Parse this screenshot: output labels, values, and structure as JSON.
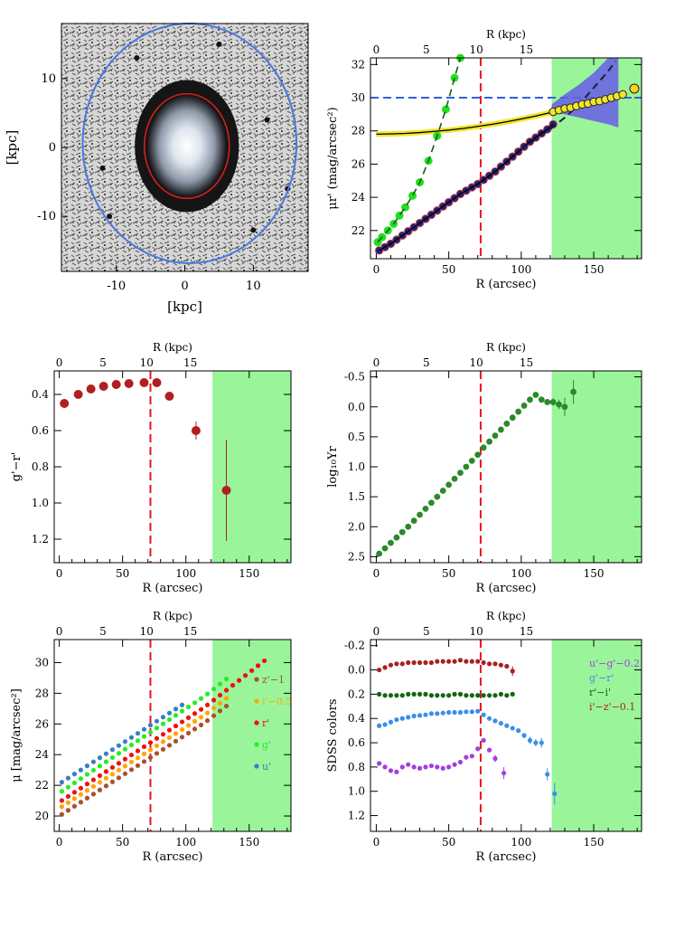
{
  "colors": {
    "green_region": "#9af59a",
    "vline": "#e8141e",
    "hline": "#2f5fe8",
    "ellipse_inner": "#d42020",
    "ellipse_outer": "#4a78e0",
    "shade": "#6a5ce8",
    "total": "#1a237e",
    "bulge": "#21e021",
    "disk": "#f0e62a",
    "endpoint": "#ffd21e",
    "gr_pts": "#b02020",
    "pr_pts": "#2a8a2a",
    "z": "#a8522e",
    "i": "#ffa500",
    "r": "#ee1111",
    "g": "#22ee22",
    "u": "#3a7ec2",
    "ug": "#a040e0",
    "grc": "#3a8fe8",
    "ri": "#116611",
    "iz": "#a82020"
  },
  "chart_data": [
    {
      "id": "image",
      "type": "image",
      "xlabel": "[kpc]",
      "ylabel": "[kpc]",
      "xticks": [
        -10,
        0,
        10
      ],
      "yticks": [
        10,
        0,
        -10
      ],
      "xlim": [
        -18,
        18
      ],
      "ylim": [
        -18,
        18
      ],
      "inner_ellipse": {
        "cx": 0.3,
        "cy": 0.2,
        "rx": 6.2,
        "ry": 7.6
      },
      "outer_ellipse": {
        "cx": 0.7,
        "cy": 0.6,
        "rx": 15.6,
        "ry": 17.4
      }
    },
    {
      "id": "sb",
      "type": "line",
      "title": "R (kpc)",
      "top_ticks": [
        "0",
        "5",
        "10",
        "15"
      ],
      "top_tick_pos": [
        0,
        5,
        10,
        15
      ],
      "xlabel": "R (arcsec)",
      "ylabel": "μr' (mag/arcsec²)",
      "xticks": [
        0,
        50,
        100,
        150
      ],
      "yticks": [
        22,
        24,
        26,
        28,
        30,
        32
      ],
      "xlim": [
        -4,
        183
      ],
      "ylim": [
        32.4,
        20.3
      ],
      "yflip": true,
      "vline": 72,
      "hline": 30,
      "green_from": 121,
      "series": [
        {
          "name": "total",
          "x": [
            2,
            6,
            10,
            14,
            18,
            22,
            26,
            30,
            34,
            38,
            42,
            46,
            50,
            54,
            58,
            62,
            66,
            70,
            74,
            78,
            82,
            86,
            90,
            94,
            98,
            102,
            106,
            110,
            114,
            118,
            122
          ],
          "y": [
            20.8,
            21.0,
            21.2,
            21.45,
            21.7,
            21.95,
            22.2,
            22.45,
            22.7,
            22.95,
            23.2,
            23.45,
            23.7,
            23.95,
            24.2,
            24.4,
            24.6,
            24.8,
            25.05,
            25.3,
            25.55,
            25.85,
            26.15,
            26.45,
            26.75,
            27.05,
            27.35,
            27.6,
            27.85,
            28.1,
            28.4
          ]
        },
        {
          "name": "bulge",
          "x": [
            1,
            4,
            8,
            12,
            16,
            20,
            25,
            30,
            36,
            42,
            48,
            54,
            58
          ],
          "y": [
            21.3,
            21.6,
            22.0,
            22.4,
            22.9,
            23.4,
            24.1,
            24.9,
            26.2,
            27.7,
            29.3,
            31.2,
            32.4
          ]
        },
        {
          "name": "disk",
          "x": [
            0,
            10,
            20,
            30,
            40,
            50,
            60,
            70,
            80,
            90,
            100,
            110,
            120,
            130,
            140,
            150,
            160,
            170
          ],
          "y": [
            27.8,
            27.82,
            27.85,
            27.9,
            27.97,
            28.05,
            28.15,
            28.27,
            28.4,
            28.55,
            28.72,
            28.9,
            29.1,
            29.3,
            29.5,
            29.72,
            29.95,
            30.2
          ]
        },
        {
          "name": "disk_pts",
          "x": [
            122,
            126,
            130,
            134,
            138,
            142,
            146,
            150,
            154,
            158,
            162,
            166,
            170
          ],
          "y": [
            29.15,
            29.25,
            29.35,
            29.4,
            29.5,
            29.6,
            29.65,
            29.75,
            29.8,
            29.9,
            30.0,
            30.1,
            30.2
          ]
        },
        {
          "name": "endpoint",
          "x": [
            178
          ],
          "y": [
            30.55
          ]
        }
      ]
    },
    {
      "id": "gr",
      "type": "scatter",
      "title": "R (kpc)",
      "top_ticks": [
        "0",
        "5",
        "10",
        "15"
      ],
      "top_tick_pos": [
        0,
        5,
        10,
        15
      ],
      "xlabel": "R (arcsec)",
      "ylabel": "g'−r'",
      "xticks": [
        0,
        50,
        100,
        150
      ],
      "yticks": [
        0.4,
        0.6,
        0.8,
        1.0,
        1.2
      ],
      "ytick_labels": [
        "0.4",
        "0.6",
        "0.8",
        "1.0",
        "1.2"
      ],
      "xlim": [
        -4,
        183
      ],
      "ylim": [
        0.27,
        1.33
      ],
      "vline": 72,
      "green_from": 121,
      "series": [
        {
          "name": "g-r",
          "x": [
            4,
            15,
            25,
            35,
            45,
            55,
            67,
            77,
            87,
            108,
            132
          ],
          "y": [
            0.45,
            0.4,
            0.37,
            0.355,
            0.345,
            0.34,
            0.335,
            0.335,
            0.41,
            0.6,
            0.93
          ],
          "err": [
            0,
            0,
            0,
            0,
            0,
            0,
            0,
            0,
            0,
            0.05,
            0.28
          ]
        }
      ]
    },
    {
      "id": "ur",
      "type": "scatter",
      "title": "R (kpc)",
      "top_ticks": [
        "0",
        "5",
        "10",
        "15"
      ],
      "top_tick_pos": [
        0,
        5,
        10,
        15
      ],
      "xlabel": "R (arcsec)",
      "ylabel": "log₁₀Υr",
      "xticks": [
        0,
        50,
        100,
        150
      ],
      "yticks": [
        -0.5,
        0.0,
        0.5,
        1.0,
        1.5,
        2.0,
        2.5
      ],
      "ytick_labels": [
        "-0.5",
        "0.0",
        "0.5",
        "1.0",
        "1.5",
        "2.0",
        "2.5"
      ],
      "xlim": [
        -4,
        183
      ],
      "ylim": [
        -0.6,
        2.6
      ],
      "vline": 72,
      "green_from": 121,
      "series": [
        {
          "name": "logY",
          "x": [
            2,
            6,
            10,
            14,
            18,
            22,
            26,
            30,
            34,
            38,
            42,
            46,
            50,
            54,
            58,
            62,
            66,
            70,
            74,
            78,
            82,
            86,
            90,
            94,
            98,
            102,
            106,
            110,
            114,
            118,
            122,
            126,
            130,
            136
          ],
          "y": [
            2.45,
            2.36,
            2.27,
            2.18,
            2.09,
            2.0,
            1.9,
            1.8,
            1.7,
            1.6,
            1.5,
            1.4,
            1.3,
            1.2,
            1.1,
            1.0,
            0.9,
            0.8,
            0.68,
            0.58,
            0.48,
            0.38,
            0.28,
            0.18,
            0.08,
            -0.02,
            -0.12,
            -0.2,
            -0.12,
            -0.08,
            -0.08,
            -0.04,
            0.0,
            -0.25
          ],
          "err": [
            0,
            0,
            0,
            0,
            0,
            0,
            0,
            0,
            0,
            0,
            0,
            0,
            0,
            0,
            0,
            0,
            0,
            0,
            0,
            0,
            0,
            0,
            0,
            0,
            0,
            0,
            0,
            0,
            0,
            0.05,
            0.06,
            0.08,
            0.15,
            0.2
          ]
        }
      ]
    },
    {
      "id": "mu",
      "type": "scatter",
      "title": "R (kpc)",
      "top_ticks": [
        "0",
        "5",
        "10",
        "15"
      ],
      "top_tick_pos": [
        0,
        5,
        10,
        15
      ],
      "xlabel": "R (arcsec)",
      "ylabel": "μ [mag/arcsec²]",
      "xticks": [
        0,
        50,
        100,
        150
      ],
      "yticks": [
        20,
        22,
        24,
        26,
        28,
        30
      ],
      "xlim": [
        -4,
        183
      ],
      "ylim": [
        31.5,
        19.0
      ],
      "yflip": true,
      "vline": 72,
      "green_from": 121,
      "legend": [
        "z'−1",
        "i'−0.5",
        "r'",
        "g'",
        "u'"
      ],
      "series": [
        {
          "name": "z'−1",
          "start": 20.0,
          "slope": 0.053,
          "xmax": 135
        },
        {
          "name": "i'−0.5",
          "start": 20.5,
          "slope": 0.053,
          "xmax": 135
        },
        {
          "name": "r'",
          "start": 20.9,
          "slope": 0.054,
          "xmax": 165
        },
        {
          "name": "g'",
          "start": 21.5,
          "slope": 0.055,
          "xmax": 132
        },
        {
          "name": "u'",
          "start": 22.1,
          "slope": 0.053,
          "xmax": 100
        }
      ]
    },
    {
      "id": "colors",
      "type": "scatter",
      "title": "R (kpc)",
      "top_ticks": [
        "0",
        "5",
        "10",
        "15"
      ],
      "top_tick_pos": [
        0,
        5,
        10,
        15
      ],
      "xlabel": "R (arcsec)",
      "ylabel": "SDSS colors",
      "xticks": [
        0,
        50,
        100,
        150
      ],
      "yticks": [
        -0.2,
        0.0,
        0.2,
        0.4,
        0.6,
        0.8,
        1.0,
        1.2
      ],
      "ytick_labels": [
        "-0.2",
        "0.0",
        "0.2",
        "0.4",
        "0.6",
        "0.8",
        "1.0",
        "1.2"
      ],
      "xlim": [
        -4,
        183
      ],
      "ylim": [
        -0.25,
        1.33
      ],
      "vline": 72,
      "green_from": 121,
      "legend": [
        "u'−g'−0.2",
        "g'−r'",
        "r'−i'",
        "i'−z'−0.1"
      ],
      "series": [
        {
          "name": "u'−g'−0.2",
          "x": [
            2,
            6,
            10,
            14,
            18,
            22,
            26,
            30,
            34,
            38,
            42,
            46,
            50,
            54,
            58,
            62,
            66,
            70,
            74,
            78,
            82,
            88
          ],
          "y": [
            0.77,
            0.8,
            0.83,
            0.84,
            0.8,
            0.78,
            0.8,
            0.81,
            0.8,
            0.79,
            0.8,
            0.81,
            0.8,
            0.78,
            0.76,
            0.72,
            0.71,
            0.65,
            0.58,
            0.66,
            0.73,
            0.85
          ],
          "err": [
            0,
            0,
            0,
            0,
            0,
            0,
            0,
            0,
            0,
            0,
            0,
            0,
            0,
            0,
            0,
            0,
            0,
            0,
            0,
            0,
            0.03,
            0.05
          ]
        },
        {
          "name": "g'−r'",
          "x": [
            2,
            6,
            10,
            14,
            18,
            22,
            26,
            30,
            34,
            38,
            42,
            46,
            50,
            54,
            58,
            62,
            66,
            70,
            74,
            78,
            82,
            86,
            90,
            94,
            98,
            102,
            106,
            110,
            114,
            118,
            123
          ],
          "y": [
            0.46,
            0.45,
            0.43,
            0.41,
            0.4,
            0.39,
            0.38,
            0.375,
            0.37,
            0.36,
            0.36,
            0.355,
            0.35,
            0.35,
            0.35,
            0.345,
            0.345,
            0.34,
            0.37,
            0.4,
            0.42,
            0.44,
            0.46,
            0.48,
            0.5,
            0.54,
            0.58,
            0.6,
            0.6,
            0.86,
            1.02
          ],
          "err": [
            0,
            0,
            0,
            0,
            0,
            0,
            0,
            0,
            0,
            0,
            0,
            0,
            0,
            0,
            0,
            0,
            0,
            0,
            0,
            0,
            0,
            0,
            0,
            0,
            0,
            0.02,
            0.03,
            0.03,
            0.04,
            0.05,
            0.09
          ]
        },
        {
          "name": "r'−i'",
          "x": [
            2,
            6,
            10,
            14,
            18,
            22,
            26,
            30,
            34,
            38,
            42,
            46,
            50,
            54,
            58,
            62,
            66,
            70,
            74,
            78,
            82,
            86,
            90,
            94
          ],
          "y": [
            0.2,
            0.21,
            0.21,
            0.21,
            0.21,
            0.2,
            0.2,
            0.2,
            0.2,
            0.21,
            0.21,
            0.21,
            0.21,
            0.2,
            0.2,
            0.21,
            0.21,
            0.21,
            0.21,
            0.21,
            0.21,
            0.2,
            0.21,
            0.2
          ]
        },
        {
          "name": "i'−z'−0.1",
          "x": [
            2,
            6,
            10,
            14,
            18,
            22,
            26,
            30,
            34,
            38,
            42,
            46,
            50,
            54,
            58,
            62,
            66,
            70,
            74,
            78,
            82,
            86,
            90,
            94
          ],
          "y": [
            0.0,
            -0.02,
            -0.04,
            -0.05,
            -0.05,
            -0.06,
            -0.06,
            -0.06,
            -0.06,
            -0.06,
            -0.07,
            -0.07,
            -0.07,
            -0.07,
            -0.08,
            -0.07,
            -0.07,
            -0.07,
            -0.06,
            -0.05,
            -0.05,
            -0.04,
            -0.03,
            0.01
          ],
          "err": [
            0,
            0,
            0,
            0,
            0,
            0,
            0,
            0,
            0,
            0,
            0,
            0,
            0,
            0,
            0,
            0,
            0,
            0,
            0,
            0,
            0,
            0,
            0,
            0.04
          ]
        }
      ]
    }
  ]
}
